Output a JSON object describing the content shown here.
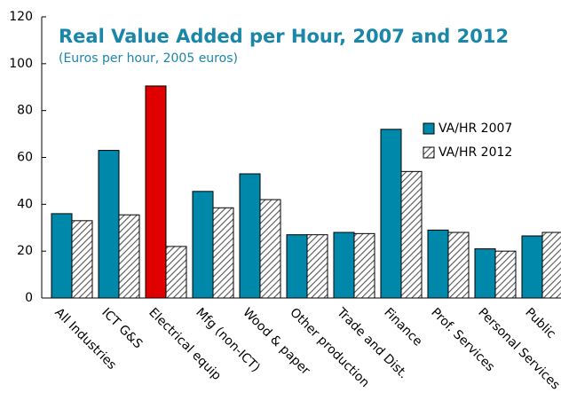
{
  "chart_data": {
    "type": "bar",
    "title": "Real Value Added per Hour, 2007 and 2012",
    "subtitle": "(Euros per hour, 2005 euros)",
    "categories": [
      "All Industries",
      "ICT G&S",
      "Electrical equip",
      "Mfg (non-ICT)",
      "Wood & paper",
      "Other production",
      "Trade and Dist.",
      "Finance",
      "Prof. Services",
      "Personal Services",
      "Public"
    ],
    "series": [
      {
        "name": "VA/HR 2007",
        "color": "#0088aa",
        "colors": [
          "#0088aa",
          "#0088aa",
          "#e00000",
          "#0088aa",
          "#0088aa",
          "#0088aa",
          "#0088aa",
          "#0088aa",
          "#0088aa",
          "#0088aa",
          "#0088aa"
        ],
        "values": [
          36,
          63,
          90.5,
          45.5,
          53,
          27,
          28,
          72,
          29,
          21,
          26.5
        ]
      },
      {
        "name": "VA/HR 2012",
        "color": "#555555",
        "pattern": "hatch",
        "values": [
          33,
          35.5,
          22,
          38.5,
          42,
          27,
          27.5,
          54,
          28,
          20,
          28
        ]
      }
    ],
    "ylim": [
      0,
      120
    ],
    "yticks": [
      0,
      20,
      40,
      60,
      80,
      100,
      120
    ],
    "legend": "right"
  }
}
